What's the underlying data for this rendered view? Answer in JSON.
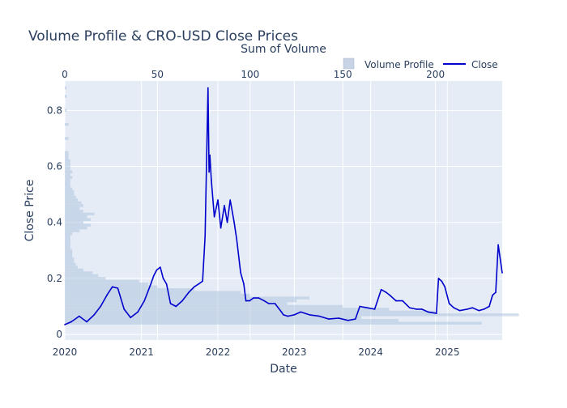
{
  "chart_data": {
    "type": "line",
    "title": "Volume Profile & CRO-USD Close Prices",
    "xlabel": "Date",
    "ylabel": "Close Price",
    "x2label": "Sum of Volume",
    "x_ticks": [
      "2020",
      "2021",
      "2022",
      "2023",
      "2024",
      "2025"
    ],
    "y_ticks": [
      "0",
      "0.2",
      "0.4",
      "0.6",
      "0.8"
    ],
    "x2_ticks": [
      "0",
      "50",
      "100",
      "150",
      "200"
    ],
    "xlim": [
      "2020-01-01",
      "2025-09-20"
    ],
    "ylim": [
      -0.02,
      0.905
    ],
    "x2lim": [
      0,
      236
    ],
    "grid": true,
    "legend_position": "top-right",
    "colors": {
      "plot_bg": "#e5ecf6",
      "line": "#0000cd",
      "bars": "#b0c4de",
      "text": "#2a3f5f"
    },
    "legend": [
      {
        "name": "Volume Profile",
        "symbol": "square"
      },
      {
        "name": "Close",
        "symbol": "line"
      }
    ],
    "series": [
      {
        "name": "Close",
        "x": [
          "2020-01-01",
          "2020-02-01",
          "2020-03-10",
          "2020-04-15",
          "2020-05-20",
          "2020-06-20",
          "2020-07-20",
          "2020-08-15",
          "2020-09-10",
          "2020-10-10",
          "2020-11-10",
          "2020-12-15",
          "2021-01-15",
          "2021-02-15",
          "2021-03-01",
          "2021-03-15",
          "2021-04-01",
          "2021-04-15",
          "2021-05-01",
          "2021-05-20",
          "2021-06-15",
          "2021-07-15",
          "2021-08-15",
          "2021-09-10",
          "2021-10-01",
          "2021-10-20",
          "2021-11-01",
          "2021-11-15",
          "2021-11-20",
          "2021-11-24",
          "2021-12-01",
          "2021-12-15",
          "2022-01-01",
          "2022-01-15",
          "2022-02-01",
          "2022-02-15",
          "2022-03-01",
          "2022-03-20",
          "2022-04-01",
          "2022-04-20",
          "2022-05-05",
          "2022-05-15",
          "2022-06-01",
          "2022-06-20",
          "2022-07-15",
          "2022-08-10",
          "2022-09-01",
          "2022-10-01",
          "2022-11-01",
          "2022-11-10",
          "2022-12-01",
          "2023-01-01",
          "2023-02-01",
          "2023-03-15",
          "2023-05-01",
          "2023-06-15",
          "2023-08-01",
          "2023-09-15",
          "2023-10-20",
          "2023-11-10",
          "2023-12-15",
          "2024-01-20",
          "2024-02-20",
          "2024-03-15",
          "2024-04-01",
          "2024-05-01",
          "2024-06-01",
          "2024-07-05",
          "2024-08-05",
          "2024-09-01",
          "2024-10-01",
          "2024-11-10",
          "2024-11-20",
          "2024-12-05",
          "2024-12-20",
          "2025-01-10",
          "2025-02-01",
          "2025-03-01",
          "2025-04-07",
          "2025-05-01",
          "2025-06-01",
          "2025-06-25",
          "2025-07-20",
          "2025-08-05",
          "2025-08-20",
          "2025-09-01",
          "2025-09-20"
        ],
        "values": [
          0.035,
          0.045,
          0.065,
          0.045,
          0.07,
          0.1,
          0.14,
          0.17,
          0.165,
          0.09,
          0.06,
          0.08,
          0.12,
          0.18,
          0.21,
          0.23,
          0.24,
          0.2,
          0.18,
          0.11,
          0.1,
          0.12,
          0.15,
          0.17,
          0.18,
          0.19,
          0.35,
          0.88,
          0.58,
          0.64,
          0.55,
          0.42,
          0.48,
          0.38,
          0.46,
          0.4,
          0.48,
          0.4,
          0.34,
          0.22,
          0.18,
          0.12,
          0.12,
          0.13,
          0.13,
          0.12,
          0.11,
          0.11,
          0.08,
          0.07,
          0.065,
          0.07,
          0.08,
          0.07,
          0.065,
          0.055,
          0.058,
          0.05,
          0.055,
          0.1,
          0.095,
          0.09,
          0.16,
          0.15,
          0.14,
          0.12,
          0.12,
          0.095,
          0.09,
          0.09,
          0.08,
          0.075,
          0.2,
          0.19,
          0.17,
          0.11,
          0.095,
          0.085,
          0.09,
          0.095,
          0.085,
          0.09,
          0.1,
          0.14,
          0.15,
          0.32,
          0.22
        ]
      }
    ],
    "volume_profile": {
      "name": "Volume Profile",
      "price_bins": [
        0.04,
        0.05,
        0.06,
        0.07,
        0.08,
        0.09,
        0.1,
        0.11,
        0.12,
        0.13,
        0.14,
        0.15,
        0.16,
        0.17,
        0.18,
        0.19,
        0.2,
        0.21,
        0.22,
        0.23,
        0.24,
        0.25,
        0.26,
        0.27,
        0.28,
        0.29,
        0.3,
        0.31,
        0.32,
        0.33,
        0.34,
        0.35,
        0.36,
        0.37,
        0.38,
        0.39,
        0.4,
        0.41,
        0.42,
        0.43,
        0.44,
        0.45,
        0.46,
        0.47,
        0.48,
        0.49,
        0.5,
        0.51,
        0.52,
        0.53,
        0.54,
        0.55,
        0.56,
        0.57,
        0.58,
        0.59,
        0.6,
        0.61,
        0.62,
        0.63,
        0.64,
        0.65,
        0.7,
        0.75,
        0.8,
        0.85,
        0.88
      ],
      "volumes": [
        225,
        180,
        160,
        245,
        200,
        175,
        150,
        120,
        125,
        132,
        100,
        95,
        70,
        50,
        45,
        40,
        22,
        18,
        15,
        10,
        7,
        6,
        5,
        5,
        4,
        4,
        4,
        3,
        3,
        3,
        3,
        3,
        4,
        8,
        12,
        14,
        10,
        14,
        12,
        16,
        10,
        8,
        10,
        9,
        7,
        6,
        5,
        5,
        4,
        3,
        3,
        3,
        4,
        3,
        4,
        3,
        3,
        3,
        3,
        2,
        2,
        2,
        2,
        2,
        1,
        1,
        1
      ]
    }
  }
}
